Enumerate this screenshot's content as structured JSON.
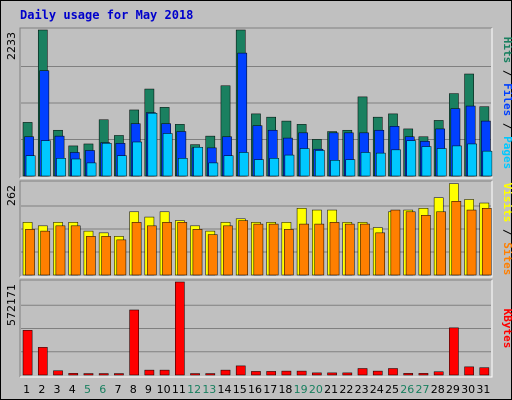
{
  "chart_data": {
    "type": "bar",
    "title": "Daily usage for May 2018",
    "categories": [
      "1",
      "2",
      "3",
      "4",
      "5",
      "6",
      "7",
      "8",
      "9",
      "10",
      "11",
      "12",
      "13",
      "14",
      "15",
      "16",
      "17",
      "18",
      "19",
      "20",
      "21",
      "22",
      "23",
      "24",
      "25",
      "26",
      "27",
      "28",
      "29",
      "30",
      "31"
    ],
    "weekend_days": [
      "5",
      "6",
      "12",
      "13",
      "19",
      "20",
      "26",
      "27"
    ],
    "panels": [
      {
        "name": "hits-files-pages",
        "ymax_label": "2233",
        "ylim": [
          0,
          2233
        ],
        "side_labels": [
          {
            "text": "Pages",
            "color": "#00c8ff"
          },
          {
            "text": " / ",
            "color": "#000000"
          },
          {
            "text": "Files",
            "color": "#0040ff"
          },
          {
            "text": " / ",
            "color": "#000000"
          },
          {
            "text": "Hits",
            "color": "#1a8060"
          }
        ],
        "series": [
          {
            "name": "Hits",
            "color": "#1a8060",
            "values": [
              820,
              2233,
              700,
              460,
              490,
              860,
              620,
              1010,
              1330,
              1050,
              790,
              480,
              610,
              1380,
              2233,
              950,
              900,
              840,
              790,
              560,
              680,
              700,
              1210,
              900,
              950,
              720,
              600,
              850,
              1260,
              1560,
              1060
            ]
          },
          {
            "name": "Files",
            "color": "#0040ff",
            "values": [
              600,
              1610,
              610,
              360,
              390,
              510,
              500,
              800,
              970,
              800,
              680,
              430,
              430,
              600,
              1880,
              770,
              700,
              580,
              660,
              410,
              660,
              660,
              660,
              700,
              760,
              600,
              530,
              720,
              1030,
              1070,
              840
            ]
          },
          {
            "name": "Pages",
            "color": "#00c8ff",
            "values": [
              310,
              540,
              270,
              260,
              200,
              500,
              310,
              520,
              960,
              650,
              270,
              440,
              200,
              310,
              360,
              250,
              270,
              320,
              420,
              390,
              240,
              250,
              360,
              350,
              400,
              540,
              450,
              420,
              460,
              490,
              380
            ]
          }
        ]
      },
      {
        "name": "visits-sites",
        "ymax_label": "262",
        "ylim": [
          0,
          262
        ],
        "side_labels": [
          {
            "text": "Sites",
            "color": "#ff7f00"
          },
          {
            "text": " / ",
            "color": "#000000"
          },
          {
            "text": "Visits",
            "color": "#ffff00"
          }
        ],
        "series": [
          {
            "name": "Visits",
            "color": "#ffff00",
            "values": [
              150,
              140,
              150,
              150,
              125,
              120,
              110,
              180,
              165,
              180,
              155,
              140,
              125,
              150,
              160,
              150,
              150,
              150,
              190,
              185,
              185,
              150,
              150,
              135,
              180,
              185,
              190,
              220,
              260,
              215,
              205
            ]
          },
          {
            "name": "Sites",
            "color": "#ff7f00",
            "values": [
              130,
              125,
              140,
              140,
              110,
              110,
              100,
              150,
              140,
              150,
              150,
              130,
              115,
              140,
              155,
              145,
              145,
              130,
              145,
              145,
              150,
              145,
              145,
              120,
              185,
              180,
              170,
              180,
              210,
              185,
              190
            ]
          }
        ]
      },
      {
        "name": "kbytes",
        "ymax_label": "572171",
        "ylim": [
          0,
          572171
        ],
        "side_labels": [
          {
            "text": "KBytes",
            "color": "#ff0000"
          }
        ],
        "series": [
          {
            "name": "KBytes",
            "color": "#ff0000",
            "values": [
              275000,
              170000,
              26000,
              10000,
              9000,
              9000,
              9000,
              400000,
              30000,
              30000,
              572171,
              9000,
              9000,
              30000,
              56000,
              22000,
              22000,
              24000,
              24000,
              13000,
              13000,
              13000,
              40000,
              24000,
              40000,
              10000,
              10000,
              20000,
              290000,
              50000,
              45000
            ]
          }
        ]
      }
    ]
  }
}
